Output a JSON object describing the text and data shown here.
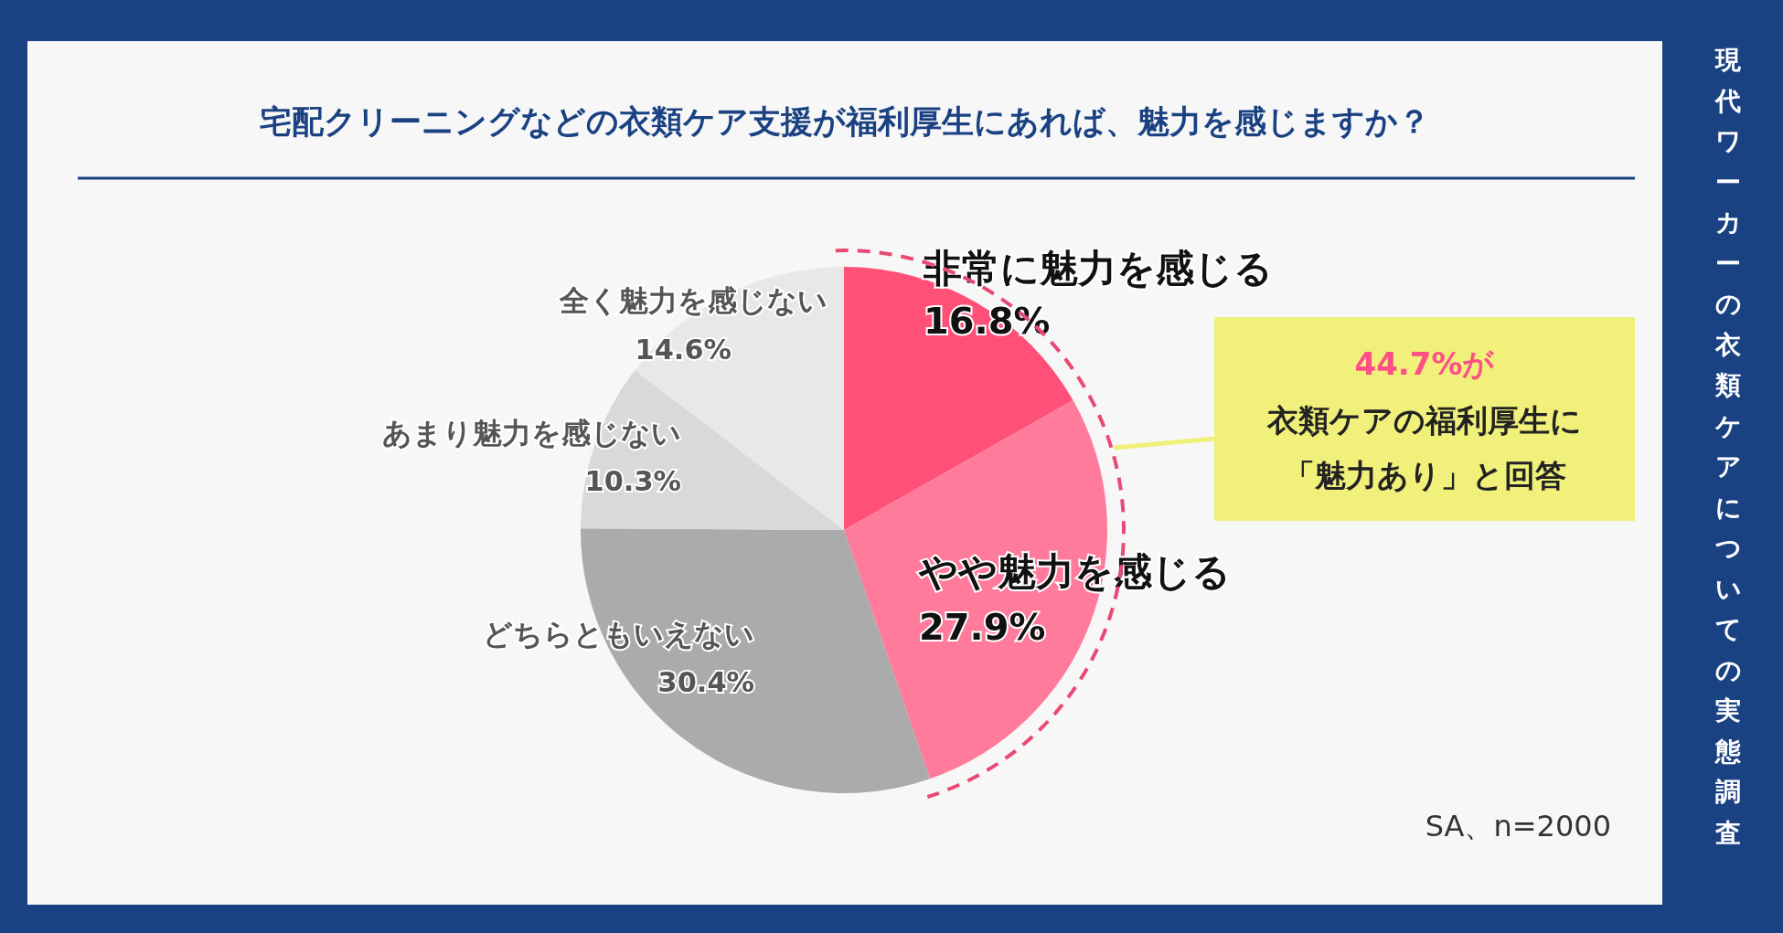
{
  "chart_data": {
    "type": "pie",
    "title": "宅配クリーニングなどの衣類ケア支援が福利厚生にあれば、魅力を感じますか？",
    "subtitle": "現代ワーカーの衣類ケアについての実態調査",
    "categories": [
      "非常に魅力を感じる",
      "やや魅力を感じる",
      "どちらともいえない",
      "あまり魅力を感じない",
      "全く魅力を感じない"
    ],
    "values": [
      16.8,
      27.9,
      30.4,
      10.3,
      14.6
    ],
    "colors": [
      "#ff5078",
      "#ff7b9b",
      "#ababab",
      "#d8d9db",
      "#e8e8e8"
    ],
    "value_labels": [
      "16.8%",
      "27.9%",
      "30.4%",
      "10.3%",
      "14.6%"
    ],
    "annotations": [
      "44.7%が",
      "衣類ケアの福利厚生に",
      "「魅力あり」と回答",
      "SA、n=2000"
    ]
  }
}
